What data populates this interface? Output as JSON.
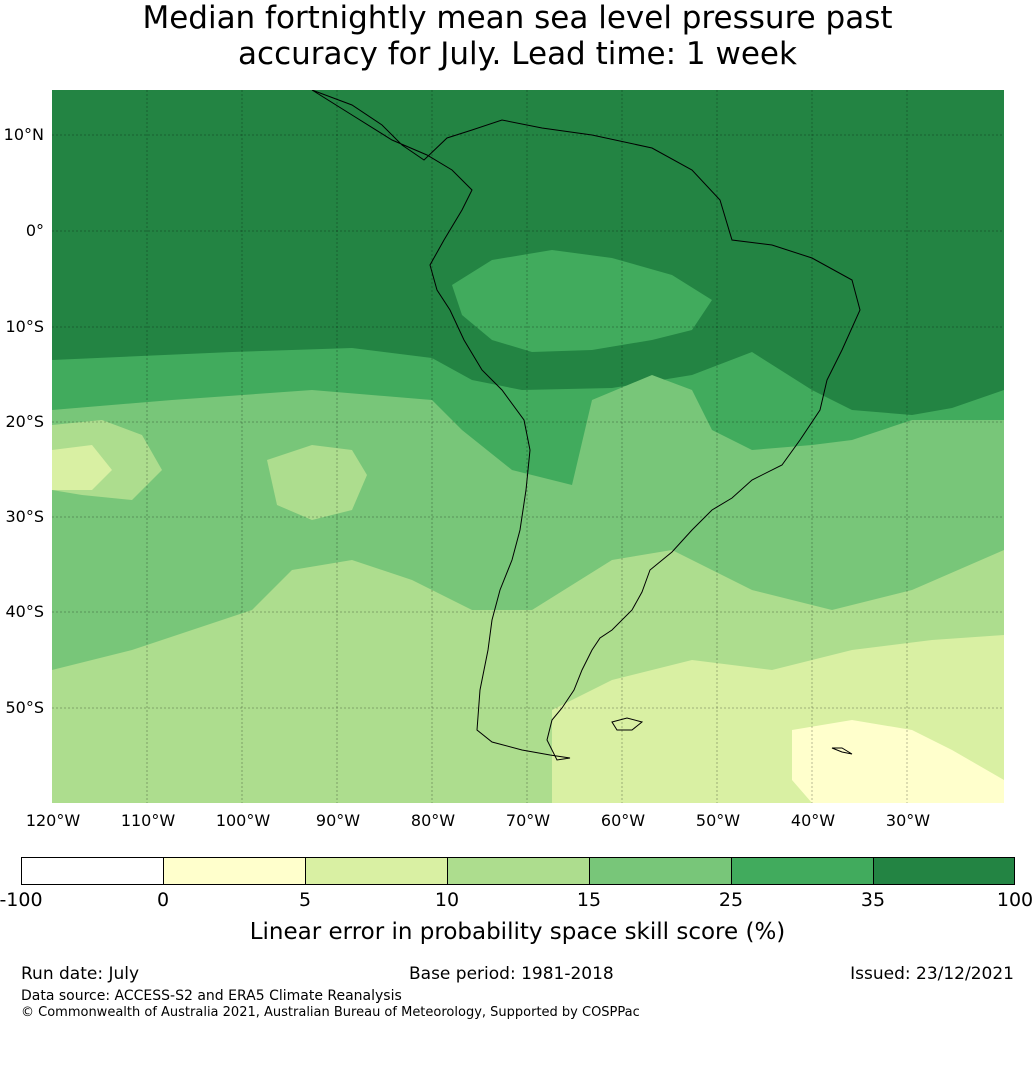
{
  "title_line1": "Median fortnightly mean sea level pressure past",
  "title_line2": "accuracy for July. Lead time: 1 week",
  "map": {
    "lat_labels": [
      "10°N",
      "0°",
      "10°S",
      "20°S",
      "30°S",
      "40°S",
      "50°S"
    ],
    "lon_labels": [
      "120°W",
      "110°W",
      "100°W",
      "90°W",
      "80°W",
      "70°W",
      "60°W",
      "50°W",
      "40°W",
      "30°W"
    ],
    "colors": {
      "band_minus100_0": "#ffffff",
      "band_0_5": "#ffffcc",
      "band_5_10": "#d9f0a3",
      "band_10_15": "#addd8e",
      "band_15_25": "#78c679",
      "band_25_35": "#41ab5d",
      "band_35_100": "#238443"
    }
  },
  "colorbar": {
    "ticks": [
      "-100",
      "0",
      "5",
      "10",
      "15",
      "25",
      "35",
      "100"
    ],
    "label": "Linear error in probability space skill score (%)"
  },
  "footer": {
    "run_date": "Run date: July",
    "base_period": "Base period: 1981-2018",
    "issued": "Issued: 23/12/2021",
    "data_source": "Data source: ACCESS-S2 and ERA5 Climate Reanalysis",
    "copyright": "© Commonwealth of Australia 2021, Australian Bureau of Meteorology, Supported by COSPPac"
  }
}
